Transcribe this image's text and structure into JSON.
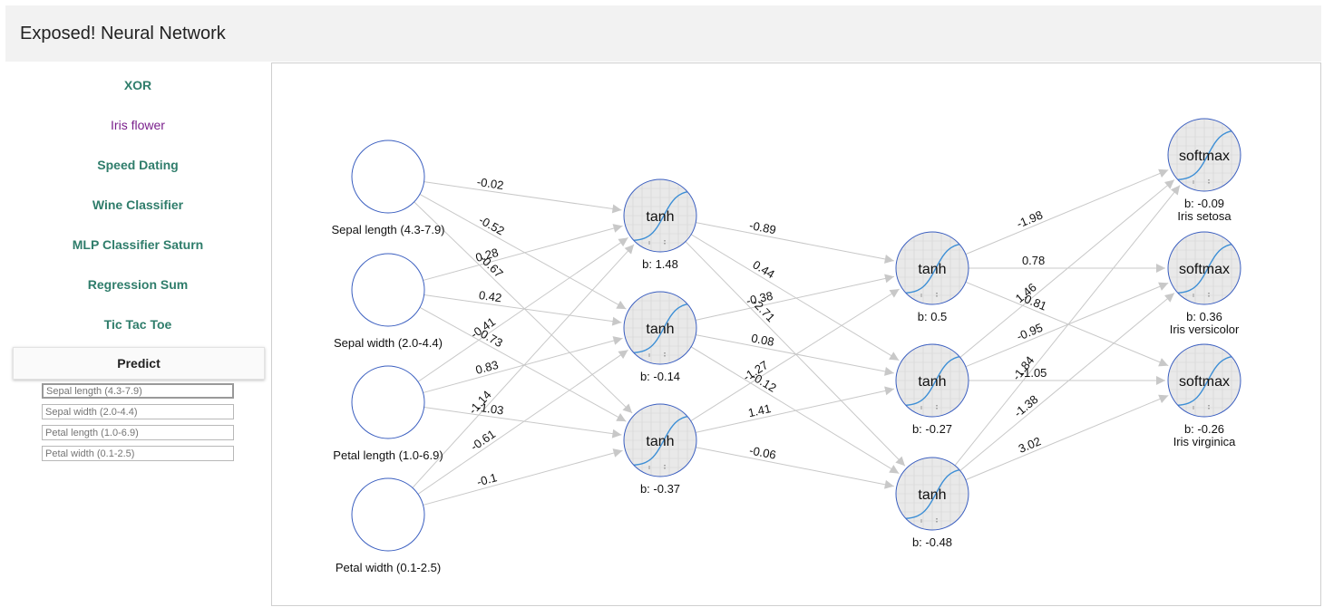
{
  "app": {
    "title": "Exposed! Neural Network"
  },
  "sidebar": {
    "items": [
      {
        "label": "XOR"
      },
      {
        "label": "Iris flower"
      },
      {
        "label": "Speed Dating"
      },
      {
        "label": "Wine Classifier"
      },
      {
        "label": "MLP Classifier Saturn"
      },
      {
        "label": "Regression Sum"
      },
      {
        "label": "Tic Tac Toe"
      }
    ],
    "predict_label": "Predict",
    "fields": [
      {
        "placeholder": "Sepal length (4.3-7.9)"
      },
      {
        "placeholder": "Sepal width (2.0-4.4)"
      },
      {
        "placeholder": "Petal length (1.0-6.9)"
      },
      {
        "placeholder": "Petal width (0.1-2.5)"
      }
    ]
  },
  "network": {
    "inputs": [
      {
        "label": "Sepal length (4.3-7.9)"
      },
      {
        "label": "Sepal width (2.0-4.4)"
      },
      {
        "label": "Petal length (1.0-6.9)"
      },
      {
        "label": "Petal width (0.1-2.5)"
      }
    ],
    "hidden1": [
      {
        "activation": "tanh",
        "bias": "b: 1.48"
      },
      {
        "activation": "tanh",
        "bias": "b: -0.14"
      },
      {
        "activation": "tanh",
        "bias": "b: -0.37"
      }
    ],
    "hidden2": [
      {
        "activation": "tanh",
        "bias": "b: 0.5"
      },
      {
        "activation": "tanh",
        "bias": "b: -0.27"
      },
      {
        "activation": "tanh",
        "bias": "b: -0.48"
      }
    ],
    "outputs": [
      {
        "activation": "softmax",
        "bias": "b: -0.09",
        "label": "Iris setosa"
      },
      {
        "activation": "softmax",
        "bias": "b: 0.36",
        "label": "Iris versicolor"
      },
      {
        "activation": "softmax",
        "bias": "b: -0.26",
        "label": "Iris virginica"
      }
    ],
    "weights_1": [
      [
        "-0.02",
        "-0.52",
        "-0.67"
      ],
      [
        "0.28",
        "0.42",
        "0.73"
      ],
      [
        "-0.41",
        "0.83",
        "-1.03"
      ],
      [
        "-1.14",
        "-0.61",
        "-0.1"
      ]
    ],
    "weights_2": [
      [
        "-0.89",
        "0.44",
        "-2.71"
      ],
      [
        "-0.38",
        "0.08",
        "-0.12"
      ],
      [
        "-1.27",
        "1.41",
        "-0.06"
      ]
    ],
    "weights_3": [
      [
        "-1.98",
        "0.78",
        "0.81"
      ],
      [
        "1.46",
        "-0.95",
        "-1.05"
      ],
      [
        "-1.84",
        "-1.38",
        "3.02"
      ]
    ],
    "colors": {
      "node_border": "#3b5fc0",
      "node_fill": "#e9e9e9",
      "curve": "#3d8fd6",
      "edge": "#c8c8c8"
    }
  }
}
